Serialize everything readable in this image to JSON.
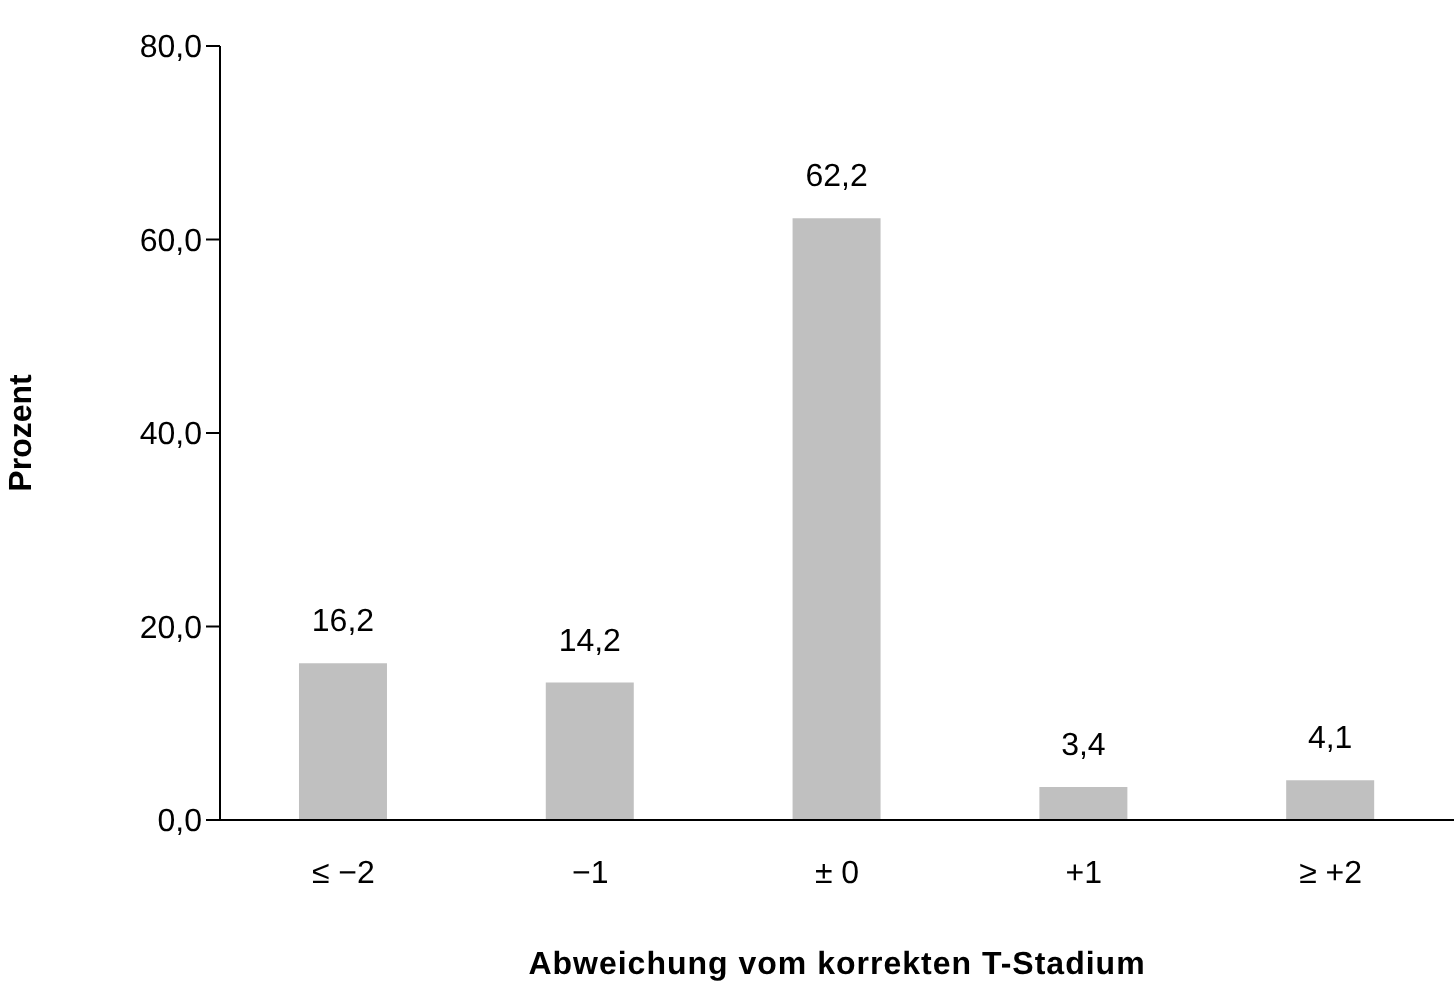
{
  "chart_data": {
    "type": "bar",
    "xlabel": "Abweichung vom korrekten T-Stadium",
    "ylabel": "Prozent",
    "categories": [
      "≤ −2",
      "−1",
      "± 0",
      "+1",
      "≥ +2"
    ],
    "values": [
      16.2,
      14.2,
      62.2,
      3.4,
      4.1
    ],
    "value_labels": [
      "16,2",
      "14,2",
      "62,2",
      "3,4",
      "4,1"
    ],
    "color": "#c0c0c0",
    "ylim": [
      0,
      80
    ],
    "yticks": [
      {
        "value": 0,
        "label": "0,0"
      },
      {
        "value": 20,
        "label": "20,0"
      },
      {
        "value": 40,
        "label": "40,0"
      },
      {
        "value": 60,
        "label": "60,0"
      },
      {
        "value": 80,
        "label": "80,0"
      }
    ],
    "grid": false,
    "legend": false
  }
}
